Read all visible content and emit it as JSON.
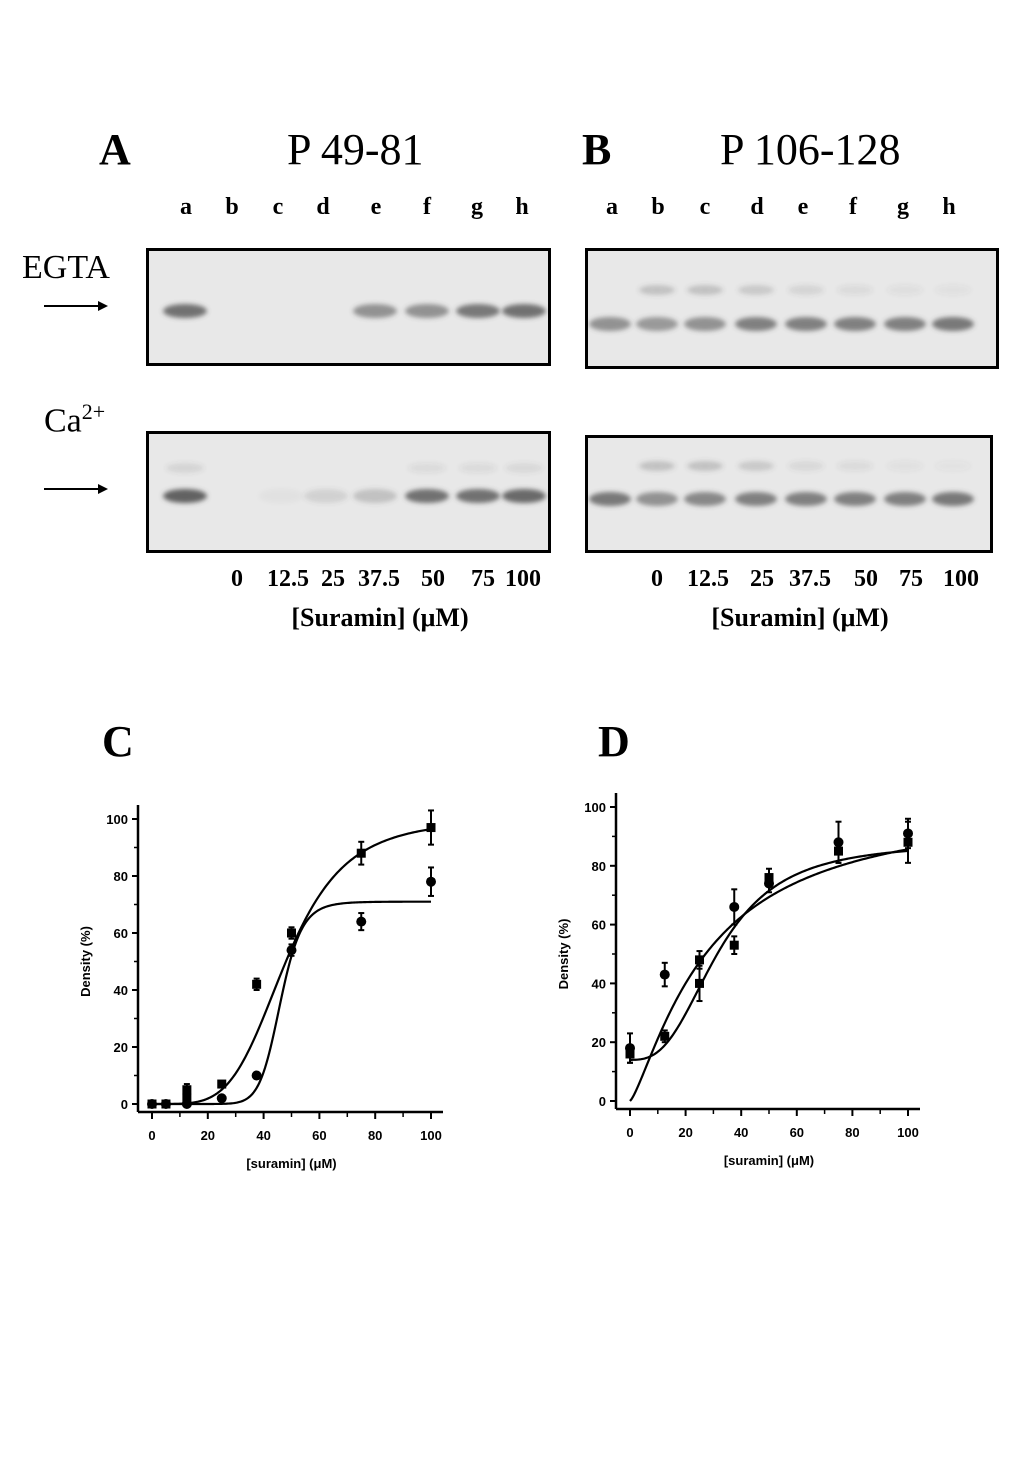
{
  "panel_a": {
    "letter": "A",
    "title": "P 49-81",
    "lanes": [
      "a",
      "b",
      "c",
      "d",
      "e",
      "f",
      "g",
      "h"
    ],
    "concentrations": [
      "0",
      "12.5",
      "25",
      "37.5",
      "50",
      "75",
      "100"
    ],
    "xlabel": "[Suramin] (μM)"
  },
  "panel_b": {
    "letter": "B",
    "title": "P 106-128",
    "lanes": [
      "a",
      "b",
      "c",
      "d",
      "e",
      "f",
      "g",
      "h"
    ],
    "concentrations": [
      "0",
      "12.5",
      "25",
      "37.5",
      "50",
      "75",
      "100"
    ],
    "xlabel": "[Suramin] (μM)"
  },
  "row_labels": {
    "egta": "EGTA",
    "ca_base": "Ca",
    "ca_sup": "2+"
  },
  "gels": {
    "a_egta": [
      0.75,
      0,
      0,
      0,
      0.55,
      0.55,
      0.7,
      0.75
    ],
    "a_ca": [
      0.85,
      0,
      0.03,
      0.15,
      0.25,
      0.75,
      0.75,
      0.8
    ],
    "b_egta": [
      0.55,
      0.5,
      0.55,
      0.65,
      0.65,
      0.65,
      0.65,
      0.7
    ],
    "b_ca": [
      0.7,
      0.55,
      0.6,
      0.65,
      0.65,
      0.65,
      0.65,
      0.7
    ],
    "b_egta_upper": [
      0,
      0.25,
      0.25,
      0.2,
      0.12,
      0.08,
      0.06,
      0.05
    ],
    "b_ca_upper": [
      0,
      0.25,
      0.25,
      0.2,
      0.1,
      0.08,
      0.05,
      0.04
    ],
    "a_ca_upper": [
      0.12,
      0,
      0,
      0,
      0,
      0.08,
      0.08,
      0.1
    ],
    "band_color": "#4a4a4a"
  },
  "chart_data": [
    {
      "panel": "C",
      "type": "scatter",
      "title": "",
      "xlabel": "[suramin] (μM)",
      "ylabel": "Density (%)",
      "xlim": [
        0,
        100
      ],
      "ylim": [
        0,
        100
      ],
      "xticks": [
        0,
        20,
        40,
        60,
        80,
        100
      ],
      "yticks": [
        0,
        20,
        40,
        60,
        80,
        100
      ],
      "series": [
        {
          "marker": "square",
          "x": [
            0,
            5,
            12.5,
            12.5,
            25,
            37.5,
            50,
            75,
            100
          ],
          "y": [
            0,
            0,
            2,
            5,
            7,
            42,
            60,
            88,
            97
          ],
          "err": [
            0,
            0,
            1,
            2,
            1,
            2,
            2,
            4,
            6
          ],
          "fit": {
            "bottom": 0,
            "top": 100,
            "ec50": 48,
            "hill": 4.5
          }
        },
        {
          "marker": "circle",
          "x": [
            0,
            5,
            12.5,
            25,
            37.5,
            50,
            75,
            100
          ],
          "y": [
            0,
            0,
            0,
            2,
            10,
            54,
            64,
            78
          ],
          "err": [
            0,
            0,
            0,
            1,
            1,
            2,
            3,
            5
          ],
          "fit": {
            "bottom": 0,
            "top": 71,
            "ec50": 46,
            "hill": 12
          }
        }
      ]
    },
    {
      "panel": "D",
      "type": "scatter",
      "title": "",
      "xlabel": "[suramin] (μM)",
      "ylabel": "Density (%)",
      "xlim": [
        0,
        100
      ],
      "ylim": [
        0,
        100
      ],
      "xticks": [
        0,
        20,
        40,
        60,
        80,
        100
      ],
      "yticks": [
        0,
        20,
        40,
        60,
        80,
        100
      ],
      "series": [
        {
          "marker": "square",
          "x": [
            0,
            12.5,
            25,
            25,
            37.5,
            50,
            75,
            100
          ],
          "y": [
            16,
            22,
            40,
            48,
            53,
            76,
            85,
            88
          ],
          "err": [
            3,
            2,
            6,
            3,
            3,
            3,
            4,
            7
          ],
          "fit": {
            "bottom": 14,
            "top": 88,
            "ec50": 32,
            "hill": 2.8
          }
        },
        {
          "marker": "circle",
          "x": [
            0,
            12.5,
            37.5,
            50,
            75,
            100
          ],
          "y": [
            18,
            43,
            66,
            74,
            88,
            91
          ],
          "err": [
            5,
            4,
            6,
            3,
            7,
            5
          ],
          "fit": {
            "bottom": 0,
            "top": 102,
            "ec50": 28,
            "hill": 1.3
          }
        }
      ]
    }
  ]
}
